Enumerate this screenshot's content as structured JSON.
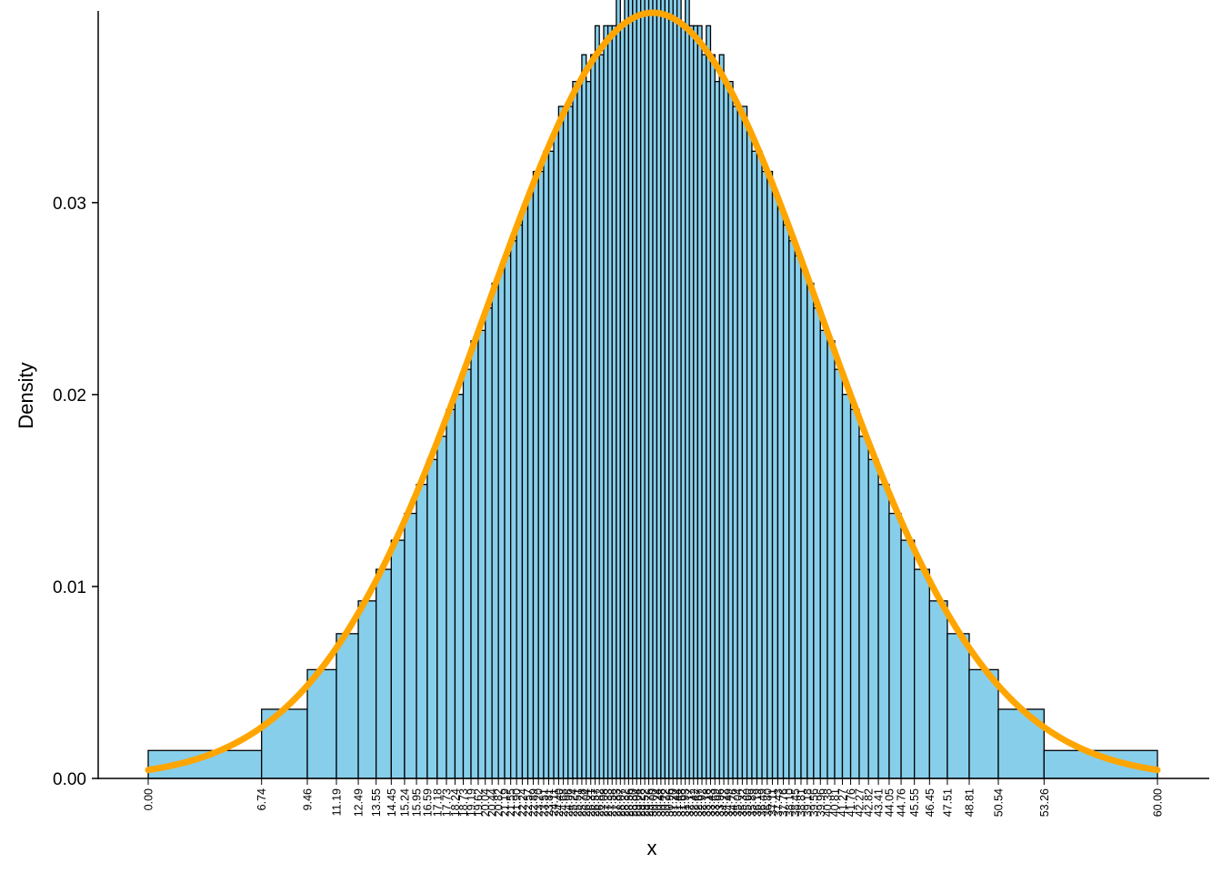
{
  "chart_data": {
    "type": "bar",
    "title": "",
    "xlabel": "x",
    "ylabel": "Density",
    "xlim": [
      0,
      60
    ],
    "ylim": [
      0,
      0.0398
    ],
    "yticks": [
      "0.00",
      "0.01",
      "0.02",
      "0.03"
    ],
    "grid": false,
    "legend": "none",
    "bin_edges": [
      0,
      6.74,
      9.46,
      11.19,
      12.49,
      13.55,
      14.45,
      15.24,
      15.95,
      16.59,
      17.18,
      17.73,
      18.24,
      18.73,
      19.19,
      19.62,
      20.04,
      20.44,
      20.82,
      21.19,
      21.55,
      21.9,
      22.24,
      22.57,
      22.89,
      23.2,
      23.51,
      23.81,
      24.11,
      24.4,
      24.68,
      24.96,
      25.24,
      25.51,
      25.78,
      26.04,
      26.31,
      26.57,
      26.82,
      27.08,
      27.33,
      27.58,
      27.83,
      28.07,
      28.32,
      28.56,
      28.8,
      29.04,
      29.28,
      29.52,
      29.76,
      30,
      30.24,
      30.48,
      30.72,
      30.96,
      31.2,
      31.44,
      31.68,
      31.93,
      32.17,
      32.42,
      32.67,
      32.92,
      33.18,
      33.43,
      33.69,
      33.96,
      34.22,
      34.49,
      34.76,
      35.04,
      35.32,
      35.6,
      35.89,
      36.19,
      36.49,
      36.8,
      37.11,
      37.43,
      37.76,
      38.1,
      38.45,
      38.81,
      39.18,
      39.56,
      39.96,
      40.38,
      40.81,
      41.27,
      41.76,
      42.27,
      42.82,
      43.41,
      44.05,
      44.76,
      45.55,
      46.45,
      47.51,
      48.81,
      50.54,
      53.26,
      60
    ],
    "curve": {
      "name": "",
      "color": "#ffa500",
      "mean": 30,
      "sd": 10
    },
    "colors": {
      "bar_fill": "#87ceeb",
      "bar_stroke": "#000000",
      "curve": "#ffa500"
    }
  }
}
